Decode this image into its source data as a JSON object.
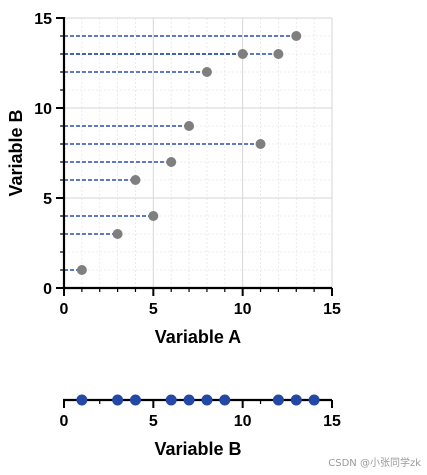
{
  "chart_data": [
    {
      "type": "scatter",
      "title": "",
      "xlabel": "Variable A",
      "ylabel": "Variable B",
      "xlim": [
        0,
        15
      ],
      "ylim": [
        0,
        15
      ],
      "xticks": [
        "0",
        "5",
        "10",
        "15"
      ],
      "yticks": [
        "0",
        "5",
        "10",
        "15"
      ],
      "grid": true,
      "drop_lines_to_y_axis": true,
      "point_color": "#7f7f7f",
      "line_color": "#2a4ea8",
      "points": [
        {
          "x": 1,
          "y": 1
        },
        {
          "x": 3,
          "y": 3
        },
        {
          "x": 5,
          "y": 4
        },
        {
          "x": 4,
          "y": 6
        },
        {
          "x": 6,
          "y": 7
        },
        {
          "x": 11,
          "y": 8
        },
        {
          "x": 7,
          "y": 9
        },
        {
          "x": 8,
          "y": 12
        },
        {
          "x": 10,
          "y": 13
        },
        {
          "x": 12,
          "y": 13
        },
        {
          "x": 13,
          "y": 14
        }
      ]
    },
    {
      "type": "scatter",
      "title": "",
      "xlabel": "Variable B",
      "xlim": [
        0,
        15
      ],
      "xticks": [
        "0",
        "5",
        "10",
        "15"
      ],
      "point_color": "#2448a6",
      "values": [
        1,
        3,
        4,
        6,
        7,
        8,
        9,
        12,
        13,
        14
      ]
    }
  ],
  "watermark": "CSDN @小张同学zk"
}
